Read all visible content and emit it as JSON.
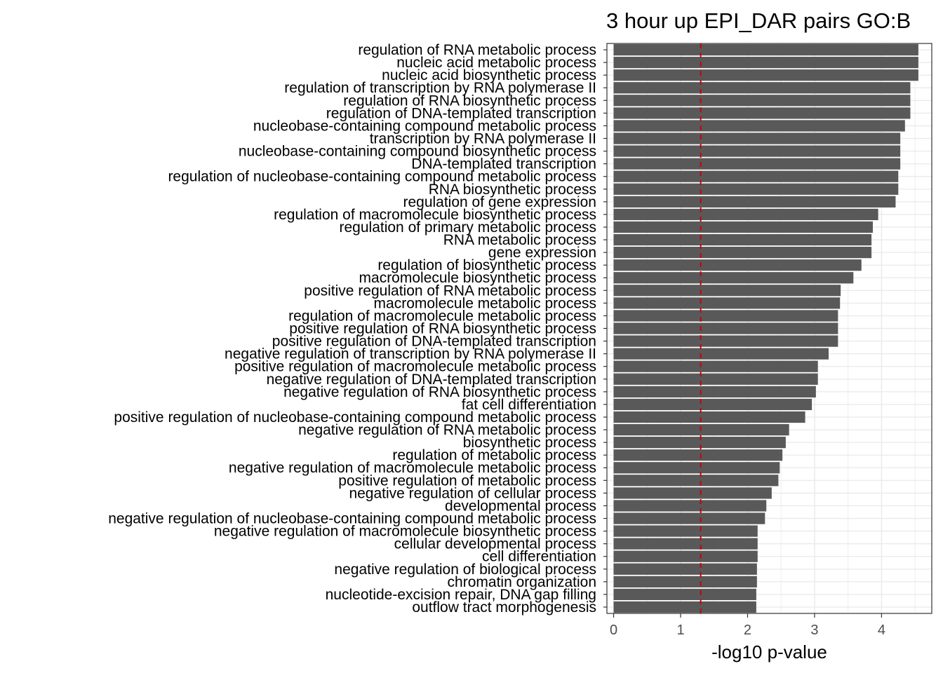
{
  "chart_data": {
    "type": "bar",
    "orientation": "horizontal",
    "title": "3 hour up EPI_DAR pairs GO:B",
    "xlabel": "-log10 p-value",
    "ylabel": "",
    "xlim": [
      -0.1,
      4.75
    ],
    "xticks": [
      0,
      1,
      2,
      3,
      4
    ],
    "grid": true,
    "legend": "none",
    "threshold": 1.3,
    "colors": {
      "bar": "#595959",
      "threshold": "#cc0000",
      "panel_border": "#333333",
      "grid": "#ebebeb"
    },
    "categories": [
      "regulation of RNA metabolic process",
      "nucleic acid metabolic process",
      "nucleic acid biosynthetic process",
      "regulation of transcription by RNA polymerase II",
      "regulation of RNA biosynthetic process",
      "regulation of DNA-templated transcription",
      "nucleobase-containing compound metabolic process",
      "transcription by RNA polymerase II",
      "nucleobase-containing compound biosynthetic process",
      "DNA-templated transcription",
      "regulation of nucleobase-containing compound metabolic process",
      "RNA biosynthetic process",
      "regulation of gene expression",
      "regulation of macromolecule biosynthetic process",
      "regulation of primary metabolic process",
      "RNA metabolic process",
      "gene expression",
      "regulation of biosynthetic process",
      "macromolecule biosynthetic process",
      "positive regulation of RNA metabolic process",
      "macromolecule metabolic process",
      "regulation of macromolecule metabolic process",
      "positive regulation of RNA biosynthetic process",
      "positive regulation of DNA-templated transcription",
      "negative regulation of transcription by RNA polymerase II",
      "positive regulation of macromolecule metabolic process",
      "negative regulation of DNA-templated transcription",
      "negative regulation of RNA biosynthetic process",
      "fat cell differentiation",
      "positive regulation of nucleobase-containing compound metabolic process",
      "negative regulation of RNA metabolic process",
      "biosynthetic process",
      "regulation of metabolic process",
      "negative regulation of macromolecule metabolic process",
      "positive regulation of metabolic process",
      "negative regulation of cellular process",
      "developmental process",
      "negative regulation of nucleobase-containing compound metabolic process",
      "negative regulation of macromolecule biosynthetic process",
      "cellular developmental process",
      "cell differentiation",
      "negative regulation of biological process",
      "chromatin organization",
      "nucleotide-excision repair, DNA gap filling",
      "outflow tract morphogenesis"
    ],
    "values": [
      4.55,
      4.55,
      4.55,
      4.43,
      4.43,
      4.43,
      4.35,
      4.28,
      4.28,
      4.28,
      4.25,
      4.25,
      4.21,
      3.95,
      3.87,
      3.85,
      3.85,
      3.7,
      3.58,
      3.39,
      3.38,
      3.35,
      3.35,
      3.35,
      3.21,
      3.05,
      3.05,
      3.02,
      2.96,
      2.86,
      2.62,
      2.57,
      2.52,
      2.48,
      2.46,
      2.36,
      2.28,
      2.26,
      2.15,
      2.15,
      2.15,
      2.14,
      2.14,
      2.13,
      2.13
    ]
  }
}
